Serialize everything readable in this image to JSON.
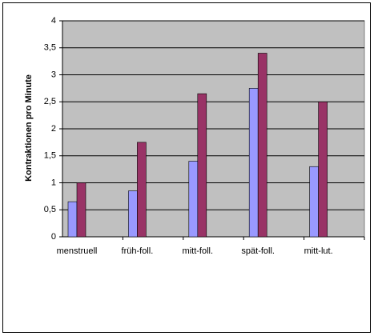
{
  "chart_data": {
    "type": "bar",
    "y_label": "Kontraktionen pro Minute",
    "categories": [
      "menstruell",
      "früh-foll.",
      "mitt-foll.",
      "spät-foll.",
      "mitt-lut."
    ],
    "series": [
      {
        "color": "#9999ff",
        "values": [
          0.65,
          0.85,
          1.4,
          2.75,
          1.3
        ]
      },
      {
        "color": "#993366",
        "values": [
          1.0,
          1.75,
          2.65,
          3.4,
          2.5
        ]
      }
    ],
    "ylim": [
      0,
      4
    ],
    "yticks": [
      0,
      {
        "value": 0.5,
        "label": "0,5"
      },
      1,
      {
        "value": 1.5,
        "label": "1,5"
      },
      2,
      {
        "value": 2.5,
        "label": "2,5"
      },
      3,
      {
        "value": 3.5,
        "label": "3,5"
      },
      4
    ],
    "grid": true
  }
}
